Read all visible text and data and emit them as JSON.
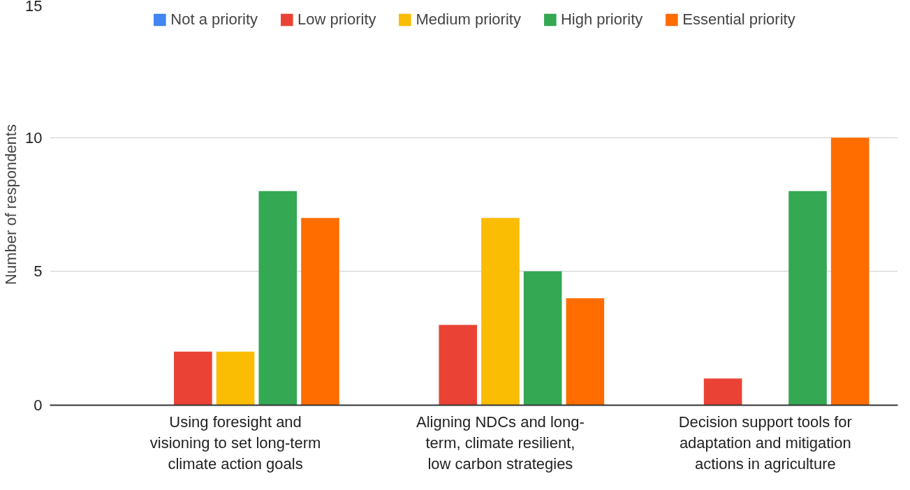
{
  "chart_data": {
    "type": "bar",
    "ylabel": "Number of respondents",
    "categories": [
      "Using foresight and visioning to set long-term climate action goals",
      "Aligning NDCs and long-term, climate resilient, low carbon strategies",
      "Decision support tools for adaptation and mitigation actions in agriculture"
    ],
    "series": [
      {
        "name": "Not a priority",
        "color": "#4285f4",
        "values": [
          0,
          0,
          0
        ]
      },
      {
        "name": "Low priority",
        "color": "#ea4335",
        "values": [
          2,
          3,
          1
        ]
      },
      {
        "name": "Medium priority",
        "color": "#fbbc04",
        "values": [
          2,
          7,
          0
        ]
      },
      {
        "name": "High priority",
        "color": "#34a853",
        "values": [
          8,
          5,
          8
        ]
      },
      {
        "name": "Essential priority",
        "color": "#ff6d01",
        "values": [
          7,
          4,
          10
        ]
      }
    ],
    "ylim": [
      0,
      15
    ],
    "yticks": [
      0,
      5,
      10,
      15
    ],
    "grid": "y",
    "legend": "top"
  }
}
